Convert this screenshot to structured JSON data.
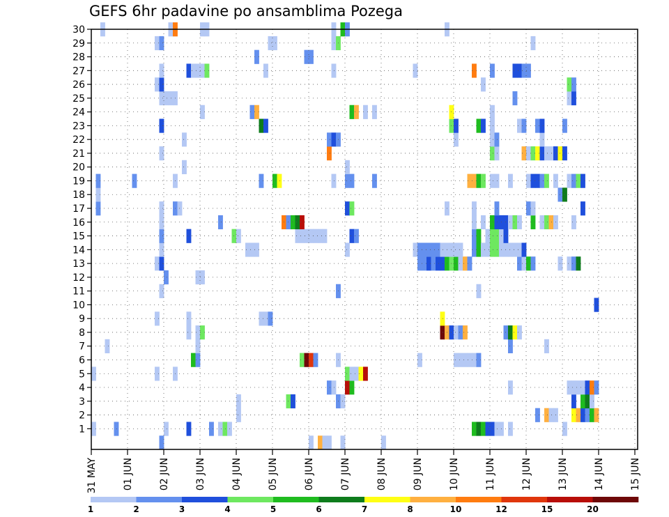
{
  "title": "GEFS 6hr padavine po ansamblima Pozega",
  "colors": {
    "1": "#b4c8f4",
    "2": "#6490ee",
    "3": "#1f4fdc",
    "4": "#6ee860",
    "5": "#1fbc1f",
    "6": "#0e7c1c",
    "7": "#ffff14",
    "8": "#ffb040",
    "9": "#ff7c10",
    "10": "#e0360c",
    "11": "#b80e08",
    "12": "#6e0808"
  },
  "chart_data": {
    "type": "heatmap",
    "title": "GEFS 6hr padavine po ansamblima Pozega",
    "y_range": [
      1,
      30
    ],
    "y_ticks": [
      1,
      2,
      3,
      4,
      5,
      6,
      7,
      8,
      9,
      10,
      11,
      12,
      13,
      14,
      15,
      16,
      17,
      18,
      19,
      20,
      21,
      22,
      23,
      24,
      25,
      26,
      27,
      28,
      29,
      30
    ],
    "x_ticks": [
      "31 MAY",
      "01 JUN",
      "02 JUN",
      "03 JUN",
      "04 JUN",
      "05 JUN",
      "06 JUN",
      "07 JUN",
      "08 JUN",
      "09 JUN",
      "10 JUN",
      "11 JUN",
      "12 JUN",
      "13 JUN",
      "14 JUN",
      "15 JUN"
    ],
    "x_step": "6hr",
    "colorbar_labels": [
      "1",
      "2",
      "3",
      "4",
      "5",
      "6",
      "7",
      "8",
      "10",
      "12",
      "15",
      "20"
    ],
    "cells": [
      [
        1,
        1,
        1
      ],
      [
        1,
        6,
        2
      ],
      [
        1,
        17,
        1
      ],
      [
        1,
        22,
        3
      ],
      [
        1,
        27,
        2
      ],
      [
        1,
        29,
        1
      ],
      [
        1,
        30,
        4
      ],
      [
        1,
        31,
        1
      ],
      [
        1,
        85,
        5
      ],
      [
        1,
        86,
        6
      ],
      [
        1,
        87,
        5
      ],
      [
        1,
        88,
        3
      ],
      [
        1,
        89,
        3
      ],
      [
        1,
        90,
        1
      ],
      [
        1,
        91,
        1
      ],
      [
        1,
        93,
        1
      ],
      [
        1,
        105,
        1
      ],
      [
        2,
        33,
        1
      ],
      [
        2,
        99,
        2
      ],
      [
        2,
        101,
        8
      ],
      [
        2,
        102,
        1
      ],
      [
        2,
        103,
        1
      ],
      [
        2,
        107,
        7
      ],
      [
        2,
        108,
        8
      ],
      [
        2,
        109,
        3
      ],
      [
        2,
        110,
        2
      ],
      [
        2,
        111,
        5
      ],
      [
        2,
        112,
        8
      ],
      [
        3,
        33,
        1
      ],
      [
        3,
        44,
        4
      ],
      [
        3,
        45,
        3
      ],
      [
        3,
        55,
        2
      ],
      [
        3,
        56,
        1
      ],
      [
        3,
        107,
        3
      ],
      [
        3,
        109,
        5
      ],
      [
        3,
        110,
        6
      ],
      [
        3,
        111,
        1
      ],
      [
        4,
        53,
        2
      ],
      [
        4,
        54,
        1
      ],
      [
        4,
        57,
        11
      ],
      [
        4,
        58,
        5
      ],
      [
        4,
        93,
        1
      ],
      [
        4,
        106,
        1
      ],
      [
        4,
        107,
        1
      ],
      [
        4,
        108,
        1
      ],
      [
        4,
        109,
        1
      ],
      [
        4,
        110,
        3
      ],
      [
        4,
        111,
        9
      ],
      [
        4,
        112,
        2
      ],
      [
        5,
        1,
        1
      ],
      [
        5,
        15,
        1
      ],
      [
        5,
        19,
        1
      ],
      [
        5,
        57,
        4
      ],
      [
        5,
        58,
        1
      ],
      [
        5,
        59,
        1
      ],
      [
        5,
        60,
        7
      ],
      [
        5,
        61,
        11
      ],
      [
        6,
        23,
        5
      ],
      [
        6,
        24,
        2
      ],
      [
        6,
        47,
        4
      ],
      [
        6,
        48,
        12
      ],
      [
        6,
        49,
        10
      ],
      [
        6,
        50,
        2
      ],
      [
        6,
        55,
        1
      ],
      [
        6,
        73,
        1
      ],
      [
        6,
        81,
        1
      ],
      [
        6,
        82,
        1
      ],
      [
        6,
        83,
        1
      ],
      [
        6,
        84,
        1
      ],
      [
        6,
        85,
        1
      ],
      [
        6,
        86,
        2
      ],
      [
        7,
        4,
        1
      ],
      [
        7,
        24,
        1
      ],
      [
        7,
        93,
        2
      ],
      [
        7,
        101,
        1
      ],
      [
        8,
        22,
        1
      ],
      [
        8,
        24,
        1
      ],
      [
        8,
        25,
        4
      ],
      [
        8,
        78,
        12
      ],
      [
        8,
        79,
        8
      ],
      [
        8,
        80,
        3
      ],
      [
        8,
        81,
        1
      ],
      [
        8,
        82,
        2
      ],
      [
        8,
        83,
        8
      ],
      [
        8,
        92,
        2
      ],
      [
        8,
        93,
        6
      ],
      [
        8,
        94,
        7
      ],
      [
        8,
        95,
        1
      ],
      [
        9,
        15,
        1
      ],
      [
        9,
        22,
        1
      ],
      [
        9,
        38,
        1
      ],
      [
        9,
        39,
        1
      ],
      [
        9,
        40,
        2
      ],
      [
        9,
        78,
        7
      ],
      [
        10,
        112,
        3
      ],
      [
        11,
        16,
        1
      ],
      [
        11,
        55,
        2
      ],
      [
        11,
        86,
        1
      ],
      [
        12,
        17,
        2
      ],
      [
        12,
        24,
        1
      ],
      [
        12,
        25,
        1
      ],
      [
        13,
        15,
        1
      ],
      [
        13,
        16,
        3
      ],
      [
        13,
        73,
        2
      ],
      [
        13,
        74,
        2
      ],
      [
        13,
        75,
        3
      ],
      [
        13,
        76,
        2
      ],
      [
        13,
        77,
        3
      ],
      [
        13,
        78,
        3
      ],
      [
        13,
        79,
        5
      ],
      [
        13,
        80,
        4
      ],
      [
        13,
        81,
        5
      ],
      [
        13,
        82,
        1
      ],
      [
        13,
        83,
        8
      ],
      [
        13,
        84,
        2
      ],
      [
        13,
        95,
        2
      ],
      [
        13,
        96,
        1
      ],
      [
        13,
        97,
        5
      ],
      [
        13,
        98,
        2
      ],
      [
        13,
        104,
        1
      ],
      [
        13,
        106,
        1
      ],
      [
        13,
        107,
        2
      ],
      [
        13,
        108,
        6
      ],
      [
        14,
        16,
        1
      ],
      [
        14,
        35,
        1
      ],
      [
        14,
        36,
        1
      ],
      [
        14,
        37,
        1
      ],
      [
        14,
        57,
        1
      ],
      [
        14,
        72,
        1
      ],
      [
        14,
        73,
        2
      ],
      [
        14,
        74,
        2
      ],
      [
        14,
        75,
        2
      ],
      [
        14,
        76,
        2
      ],
      [
        14,
        77,
        2
      ],
      [
        14,
        78,
        1
      ],
      [
        14,
        79,
        1
      ],
      [
        14,
        80,
        1
      ],
      [
        14,
        81,
        1
      ],
      [
        14,
        82,
        1
      ],
      [
        14,
        85,
        2
      ],
      [
        14,
        86,
        5
      ],
      [
        14,
        87,
        1
      ],
      [
        14,
        88,
        1
      ],
      [
        14,
        89,
        4
      ],
      [
        14,
        90,
        4
      ],
      [
        14,
        91,
        1
      ],
      [
        14,
        92,
        1
      ],
      [
        14,
        93,
        1
      ],
      [
        14,
        94,
        1
      ],
      [
        14,
        95,
        1
      ],
      [
        14,
        96,
        3
      ],
      [
        15,
        16,
        2
      ],
      [
        15,
        22,
        3
      ],
      [
        15,
        32,
        4
      ],
      [
        15,
        33,
        1
      ],
      [
        15,
        46,
        1
      ],
      [
        15,
        47,
        1
      ],
      [
        15,
        48,
        1
      ],
      [
        15,
        49,
        1
      ],
      [
        15,
        50,
        1
      ],
      [
        15,
        51,
        1
      ],
      [
        15,
        52,
        1
      ],
      [
        15,
        58,
        3
      ],
      [
        15,
        59,
        2
      ],
      [
        15,
        85,
        2
      ],
      [
        15,
        86,
        5
      ],
      [
        15,
        88,
        1
      ],
      [
        15,
        89,
        4
      ],
      [
        15,
        90,
        4
      ],
      [
        15,
        91,
        1
      ],
      [
        15,
        92,
        3
      ],
      [
        16,
        16,
        1
      ],
      [
        16,
        29,
        2
      ],
      [
        16,
        43,
        9
      ],
      [
        16,
        44,
        2
      ],
      [
        16,
        45,
        5
      ],
      [
        16,
        46,
        6
      ],
      [
        16,
        47,
        11
      ],
      [
        16,
        85,
        1
      ],
      [
        16,
        87,
        1
      ],
      [
        16,
        89,
        5
      ],
      [
        16,
        90,
        3
      ],
      [
        16,
        91,
        3
      ],
      [
        16,
        92,
        3
      ],
      [
        16,
        93,
        1
      ],
      [
        16,
        94,
        4
      ],
      [
        16,
        95,
        1
      ],
      [
        16,
        98,
        5
      ],
      [
        16,
        100,
        1
      ],
      [
        16,
        101,
        4
      ],
      [
        16,
        102,
        8
      ],
      [
        16,
        103,
        1
      ],
      [
        16,
        107,
        1
      ],
      [
        17,
        2,
        2
      ],
      [
        17,
        16,
        1
      ],
      [
        17,
        19,
        2
      ],
      [
        17,
        20,
        1
      ],
      [
        17,
        57,
        3
      ],
      [
        17,
        58,
        4
      ],
      [
        17,
        79,
        1
      ],
      [
        17,
        85,
        1
      ],
      [
        17,
        90,
        2
      ],
      [
        17,
        97,
        2
      ],
      [
        17,
        98,
        1
      ],
      [
        17,
        109,
        3
      ],
      [
        18,
        2,
        1
      ],
      [
        18,
        104,
        2
      ],
      [
        18,
        105,
        6
      ],
      [
        19,
        2,
        2
      ],
      [
        19,
        10,
        2
      ],
      [
        19,
        19,
        1
      ],
      [
        19,
        38,
        2
      ],
      [
        19,
        41,
        5
      ],
      [
        19,
        42,
        7
      ],
      [
        19,
        54,
        1
      ],
      [
        19,
        57,
        2
      ],
      [
        19,
        58,
        2
      ],
      [
        19,
        63,
        2
      ],
      [
        19,
        84,
        8
      ],
      [
        19,
        85,
        8
      ],
      [
        19,
        86,
        5
      ],
      [
        19,
        87,
        4
      ],
      [
        19,
        89,
        1
      ],
      [
        19,
        90,
        1
      ],
      [
        19,
        93,
        1
      ],
      [
        19,
        97,
        1
      ],
      [
        19,
        98,
        3
      ],
      [
        19,
        99,
        3
      ],
      [
        19,
        100,
        2
      ],
      [
        19,
        101,
        4
      ],
      [
        19,
        103,
        1
      ],
      [
        19,
        106,
        1
      ],
      [
        19,
        107,
        2
      ],
      [
        19,
        108,
        4
      ],
      [
        19,
        109,
        3
      ],
      [
        20,
        21,
        1
      ],
      [
        20,
        57,
        1
      ],
      [
        21,
        16,
        1
      ],
      [
        21,
        53,
        9
      ],
      [
        21,
        89,
        4
      ],
      [
        21,
        90,
        1
      ],
      [
        21,
        96,
        8
      ],
      [
        21,
        97,
        1
      ],
      [
        21,
        98,
        4
      ],
      [
        21,
        99,
        7
      ],
      [
        21,
        100,
        3
      ],
      [
        21,
        101,
        1
      ],
      [
        21,
        102,
        1
      ],
      [
        21,
        103,
        3
      ],
      [
        21,
        104,
        7
      ],
      [
        21,
        105,
        3
      ],
      [
        22,
        21,
        1
      ],
      [
        22,
        53,
        2
      ],
      [
        22,
        54,
        3
      ],
      [
        22,
        55,
        2
      ],
      [
        22,
        81,
        1
      ],
      [
        22,
        89,
        1
      ],
      [
        22,
        90,
        2
      ],
      [
        22,
        100,
        1
      ],
      [
        23,
        16,
        3
      ],
      [
        23,
        38,
        6
      ],
      [
        23,
        39,
        3
      ],
      [
        23,
        80,
        4
      ],
      [
        23,
        81,
        3
      ],
      [
        23,
        86,
        5
      ],
      [
        23,
        87,
        3
      ],
      [
        23,
        89,
        1
      ],
      [
        23,
        95,
        1
      ],
      [
        23,
        96,
        2
      ],
      [
        23,
        99,
        2
      ],
      [
        23,
        100,
        3
      ],
      [
        23,
        105,
        2
      ],
      [
        24,
        25,
        1
      ],
      [
        24,
        36,
        2
      ],
      [
        24,
        37,
        8
      ],
      [
        24,
        58,
        5
      ],
      [
        24,
        59,
        8
      ],
      [
        24,
        61,
        1
      ],
      [
        24,
        63,
        1
      ],
      [
        24,
        80,
        7
      ],
      [
        24,
        89,
        1
      ],
      [
        25,
        16,
        1
      ],
      [
        25,
        17,
        1
      ],
      [
        25,
        18,
        1
      ],
      [
        25,
        19,
        1
      ],
      [
        25,
        94,
        2
      ],
      [
        25,
        106,
        1
      ],
      [
        25,
        107,
        3
      ],
      [
        26,
        15,
        1
      ],
      [
        26,
        16,
        3
      ],
      [
        26,
        87,
        1
      ],
      [
        26,
        106,
        4
      ],
      [
        26,
        107,
        2
      ],
      [
        27,
        16,
        1
      ],
      [
        27,
        22,
        3
      ],
      [
        27,
        23,
        1
      ],
      [
        27,
        24,
        1
      ],
      [
        27,
        25,
        1
      ],
      [
        27,
        26,
        4
      ],
      [
        27,
        39,
        1
      ],
      [
        27,
        54,
        1
      ],
      [
        27,
        72,
        1
      ],
      [
        27,
        85,
        9
      ],
      [
        27,
        89,
        2
      ],
      [
        27,
        94,
        3
      ],
      [
        27,
        95,
        3
      ],
      [
        27,
        96,
        2
      ],
      [
        27,
        97,
        2
      ],
      [
        28,
        37,
        2
      ],
      [
        28,
        48,
        2
      ],
      [
        28,
        49,
        2
      ],
      [
        29,
        15,
        1
      ],
      [
        29,
        16,
        2
      ],
      [
        29,
        40,
        1
      ],
      [
        29,
        41,
        1
      ],
      [
        29,
        54,
        1
      ],
      [
        29,
        55,
        4
      ],
      [
        29,
        98,
        1
      ],
      [
        30,
        3,
        1
      ],
      [
        30,
        18,
        1
      ],
      [
        30,
        19,
        9
      ],
      [
        30,
        25,
        1
      ],
      [
        30,
        26,
        1
      ],
      [
        30,
        54,
        1
      ],
      [
        30,
        56,
        5
      ],
      [
        30,
        57,
        2
      ],
      [
        30,
        79,
        1
      ],
      [
        0,
        16,
        2
      ],
      [
        0,
        49,
        1
      ],
      [
        0,
        51,
        8
      ],
      [
        0,
        52,
        1
      ],
      [
        0,
        53,
        1
      ],
      [
        0,
        56,
        1
      ],
      [
        0,
        65,
        1
      ]
    ]
  }
}
